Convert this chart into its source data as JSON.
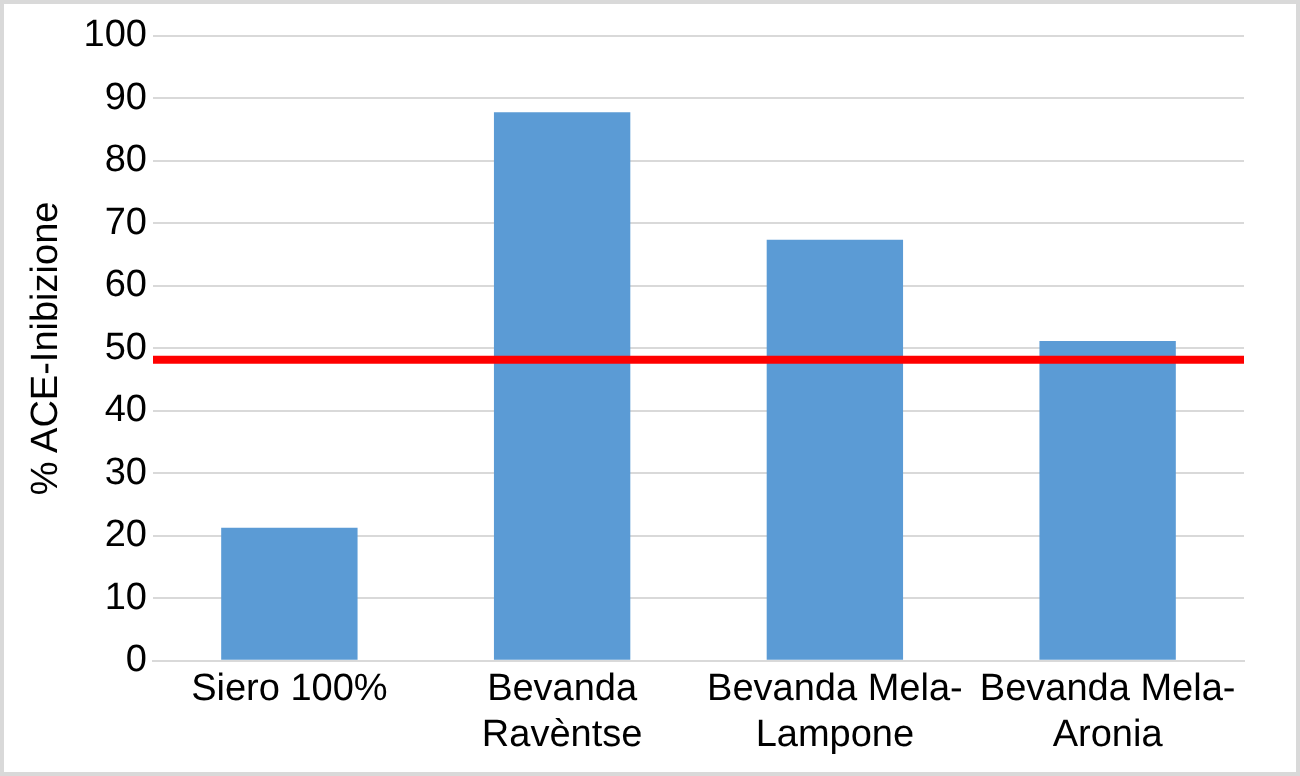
{
  "chart_data": {
    "type": "bar",
    "ylabel": "% ACE-Inibizione",
    "categories": [
      "Siero 100%",
      "Bevanda Ravèntse",
      "Bevanda Mela-Lampone",
      "Bevanda Mela-Aronia"
    ],
    "values": [
      21.3,
      87.8,
      67.4,
      51.2
    ],
    "color": "#5b9bd5",
    "ylim": [
      0,
      100
    ],
    "yticks": [
      0,
      10,
      20,
      30,
      40,
      50,
      60,
      70,
      80,
      90,
      100
    ],
    "grid": "y",
    "legend": false,
    "ref_lines": [
      {
        "axis": "y",
        "value": 48.2,
        "color": "#ff0000"
      }
    ]
  }
}
